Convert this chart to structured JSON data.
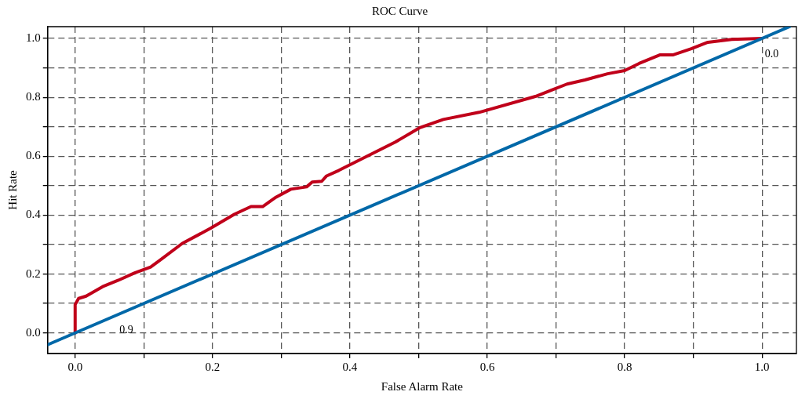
{
  "chart_data": {
    "type": "line",
    "title": "ROC Curve",
    "xlabel": "False Alarm Rate",
    "ylabel": "Hit Rate",
    "xlim": [
      -0.04,
      1.05
    ],
    "ylim": [
      -0.07,
      1.04
    ],
    "xticks": [
      {
        "value": 0,
        "label": "0.0"
      },
      {
        "value": 0.1,
        "label": null
      },
      {
        "value": 0.2,
        "label": "0.2"
      },
      {
        "value": 0.3,
        "label": null
      },
      {
        "value": 0.4,
        "label": "0.4"
      },
      {
        "value": 0.5,
        "label": null
      },
      {
        "value": 0.6,
        "label": "0.6"
      },
      {
        "value": 0.7,
        "label": null
      },
      {
        "value": 0.8,
        "label": "0.8"
      },
      {
        "value": 0.9,
        "label": null
      },
      {
        "value": 1,
        "label": "1.0"
      }
    ],
    "yticks": [
      {
        "value": 0,
        "label": "0.0"
      },
      {
        "value": 0.1,
        "label": null
      },
      {
        "value": 0.2,
        "label": "0.2"
      },
      {
        "value": 0.3,
        "label": null
      },
      {
        "value": 0.4,
        "label": "0.4"
      },
      {
        "value": 0.5,
        "label": null
      },
      {
        "value": 0.6,
        "label": "0.6"
      },
      {
        "value": 0.7,
        "label": null
      },
      {
        "value": 0.8,
        "label": "0.8"
      },
      {
        "value": 0.9,
        "label": null
      },
      {
        "value": 1,
        "label": "1.0"
      }
    ],
    "grid": true,
    "legend": false,
    "marker": "none",
    "line_style": "solid",
    "series": [
      {
        "color": "#0068a8",
        "x": [
          -0.04,
          1.04
        ],
        "values": [
          -0.04,
          1.04
        ]
      },
      {
        "color": "#c0001a",
        "x": [
          0,
          0,
          0.005,
          0.016,
          0.04,
          0.063,
          0.086,
          0.11,
          0.127,
          0.156,
          0.197,
          0.232,
          0.256,
          0.273,
          0.291,
          0.314,
          0.337,
          0.345,
          0.359,
          0.366,
          0.384,
          0.425,
          0.466,
          0.501,
          0.536,
          0.588,
          0.67,
          0.693,
          0.716,
          0.742,
          0.775,
          0.8,
          0.821,
          0.851,
          0.87,
          0.897,
          0.921,
          0.956,
          1.0
        ],
        "values": [
          0,
          0.096,
          0.117,
          0.125,
          0.157,
          0.179,
          0.203,
          0.224,
          0.253,
          0.304,
          0.355,
          0.403,
          0.429,
          0.429,
          0.459,
          0.488,
          0.496,
          0.512,
          0.515,
          0.533,
          0.552,
          0.6,
          0.648,
          0.696,
          0.725,
          0.749,
          0.803,
          0.824,
          0.845,
          0.859,
          0.88,
          0.891,
          0.915,
          0.944,
          0.944,
          0.965,
          0.987,
          0.997,
          1.0
        ]
      }
    ],
    "annotations": [
      "0.9",
      "0.0"
    ]
  }
}
